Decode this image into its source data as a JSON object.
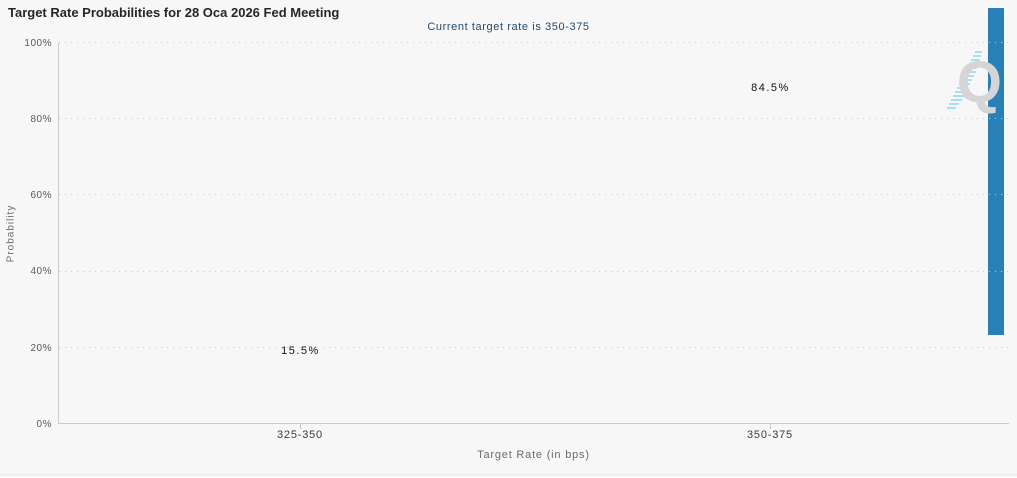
{
  "header": {
    "title": "Target Rate Probabilities for 28 Oca 2026 Fed Meeting",
    "subtitle": "Current target rate is 350-375"
  },
  "watermark": {
    "letter": "Q"
  },
  "chart_data": {
    "type": "bar",
    "title": "Target Rate Probabilities for 28 Oca 2026 Fed Meeting",
    "subtitle": "Current target rate is 350-375",
    "categories": [
      "325-350",
      "350-375"
    ],
    "values": [
      15.5,
      84.5
    ],
    "value_labels": [
      "15.5%",
      "84.5%"
    ],
    "xlabel": "Target Rate (in bps)",
    "ylabel": "Probability",
    "ylim": [
      0,
      100
    ],
    "y_ticks": [
      "0%",
      "20%",
      "40%",
      "60%",
      "80%",
      "100%"
    ],
    "grid": "dotted horizontal lines every 20%",
    "legend": "none",
    "bar_color": "#2980b9",
    "background_color": "#f7f7f7",
    "subtitle_color": "#27496b"
  }
}
